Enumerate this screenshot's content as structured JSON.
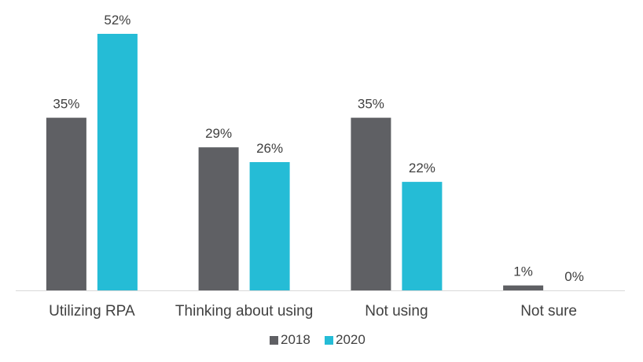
{
  "chart_data": {
    "type": "bar",
    "title": "",
    "xlabel": "",
    "ylabel": "",
    "ylim": [
      0,
      55
    ],
    "grid": false,
    "legend_position": "bottom",
    "categories": [
      "Utilizing RPA",
      "Thinking about using",
      "Not using",
      "Not sure"
    ],
    "series": [
      {
        "name": "2018",
        "color": "#5f6064",
        "values": [
          35,
          29,
          35,
          1
        ],
        "labels": [
          "35%",
          "29%",
          "35%",
          "1%"
        ]
      },
      {
        "name": "2020",
        "color": "#25bcd6",
        "values": [
          52,
          26,
          22,
          0
        ],
        "labels": [
          "52%",
          "26%",
          "22%",
          "0%"
        ]
      }
    ],
    "axis_color": "#d9d9d9"
  }
}
